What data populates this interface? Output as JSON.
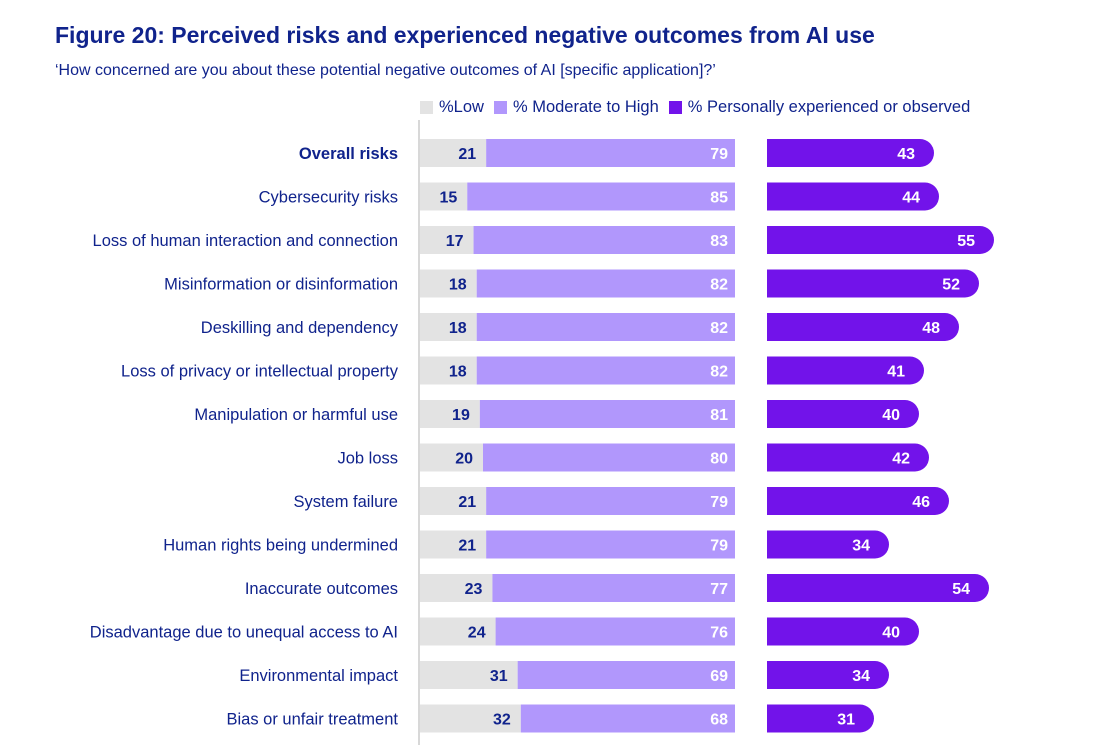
{
  "chart_data": {
    "type": "bar",
    "title": "Figure 20: Perceived risks and experienced negative outcomes from AI use",
    "subtitle": "‘How concerned are you about these potential negative outcomes of AI [specific application]?’",
    "categories": [
      "Overall risks",
      "Cybersecurity risks",
      "Loss of human interaction and connection",
      "Misinformation or disinformation",
      "Deskilling and dependency",
      "Loss of privacy or intellectual property",
      "Manipulation or harmful use",
      "Job loss",
      "System failure",
      "Human rights being undermined",
      "Inaccurate outcomes",
      "Disadvantage due to unequal access to AI",
      "Environmental impact",
      "Bias or unfair treatment"
    ],
    "series": [
      {
        "name": "%Low",
        "color": "#e3e3e3",
        "values": [
          21,
          15,
          17,
          18,
          18,
          18,
          19,
          20,
          21,
          21,
          23,
          24,
          31,
          32
        ]
      },
      {
        "name": "% Moderate to High",
        "color": "#b197fc",
        "values": [
          79,
          85,
          83,
          82,
          82,
          82,
          81,
          80,
          79,
          79,
          77,
          76,
          69,
          68
        ]
      },
      {
        "name": "% Personally experienced or observed",
        "color": "#7213ea",
        "values": [
          43,
          44,
          55,
          52,
          48,
          41,
          40,
          42,
          46,
          34,
          54,
          40,
          34,
          31
        ]
      }
    ],
    "stacked_series": [
      "%Low",
      "% Moderate to High"
    ],
    "legend_position": "top",
    "grid": false,
    "bold_categories": [
      "Overall risks"
    ]
  }
}
